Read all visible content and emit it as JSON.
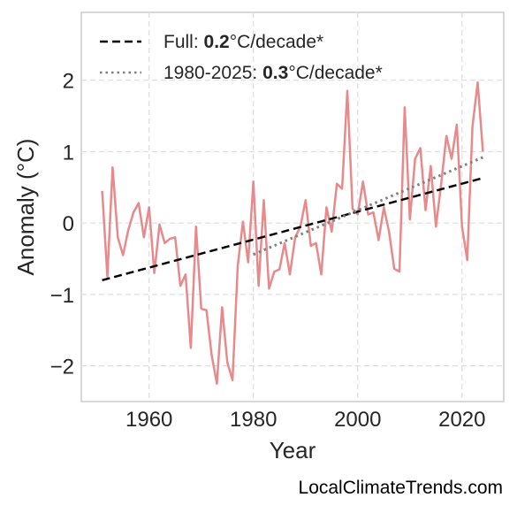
{
  "chart_data": {
    "type": "line",
    "title": "",
    "xlabel": "Year",
    "ylabel": "Anomaly (°C)",
    "xlim": [
      1947,
      2028
    ],
    "ylim": [
      -2.5,
      2.95
    ],
    "xticks": [
      1960,
      1980,
      2000,
      2020
    ],
    "yticks": [
      -2,
      -1,
      0,
      1,
      2
    ],
    "grid": true,
    "legend_position": "top-left",
    "series": [
      {
        "color": "#e8898b",
        "style": "solid",
        "x": [
          1951,
          1952,
          1953,
          1954,
          1955,
          1956,
          1957,
          1958,
          1959,
          1960,
          1961,
          1962,
          1963,
          1964,
          1965,
          1966,
          1967,
          1968,
          1969,
          1970,
          1971,
          1972,
          1973,
          1974,
          1975,
          1976,
          1977,
          1978,
          1979,
          1980,
          1981,
          1982,
          1983,
          1984,
          1985,
          1986,
          1987,
          1988,
          1989,
          1990,
          1991,
          1992,
          1993,
          1994,
          1995,
          1996,
          1997,
          1998,
          1999,
          2000,
          2001,
          2002,
          2003,
          2004,
          2005,
          2006,
          2007,
          2008,
          2009,
          2010,
          2011,
          2012,
          2013,
          2014,
          2015,
          2016,
          2017,
          2018,
          2019,
          2020,
          2021,
          2022,
          2023,
          2024
        ],
        "y": [
          0.45,
          -0.75,
          0.78,
          -0.2,
          -0.45,
          -0.1,
          0.15,
          0.28,
          -0.2,
          0.22,
          -0.7,
          -0.02,
          -0.28,
          -0.22,
          -0.2,
          -0.88,
          -0.72,
          -1.75,
          -0.05,
          -1.2,
          -1.22,
          -1.85,
          -2.25,
          -1.18,
          -1.95,
          -2.2,
          -0.6,
          0.02,
          -0.55,
          0.58,
          -0.88,
          0.32,
          -0.92,
          -0.68,
          -0.65,
          -0.28,
          -0.72,
          -0.2,
          -0.05,
          0.32,
          -0.32,
          -0.28,
          -0.72,
          0.22,
          -0.12,
          0.55,
          0.48,
          1.85,
          0.2,
          0.12,
          0.58,
          0.12,
          0.15,
          -0.24,
          0.22,
          -0.12,
          -0.64,
          -0.68,
          1.62,
          0.05,
          0.9,
          1.05,
          0.18,
          0.8,
          -0.05,
          0.55,
          1.22,
          0.9,
          1.38,
          -0.05,
          -0.52,
          1.35,
          1.97,
          1.0
        ]
      },
      {
        "name": "Full",
        "color": "#000000",
        "style": "dashed",
        "x": [
          1951,
          2024
        ],
        "y": [
          -0.8,
          0.63
        ],
        "trend_value": "0.2",
        "trend_unit": "°C/decade*"
      },
      {
        "name": "1980-2025",
        "color": "#808080",
        "style": "dotted",
        "x": [
          1980,
          2024
        ],
        "y": [
          -0.44,
          0.92
        ],
        "trend_value": "0.3",
        "trend_unit": "°C/decade*"
      }
    ],
    "legend": [
      {
        "label": "Full: ",
        "value": "0.2",
        "unit": "°C/decade*"
      },
      {
        "label": "1980-2025: ",
        "value": "0.3",
        "unit": "°C/decade*"
      }
    ]
  },
  "watermark": "LocalClimateTrends.com"
}
